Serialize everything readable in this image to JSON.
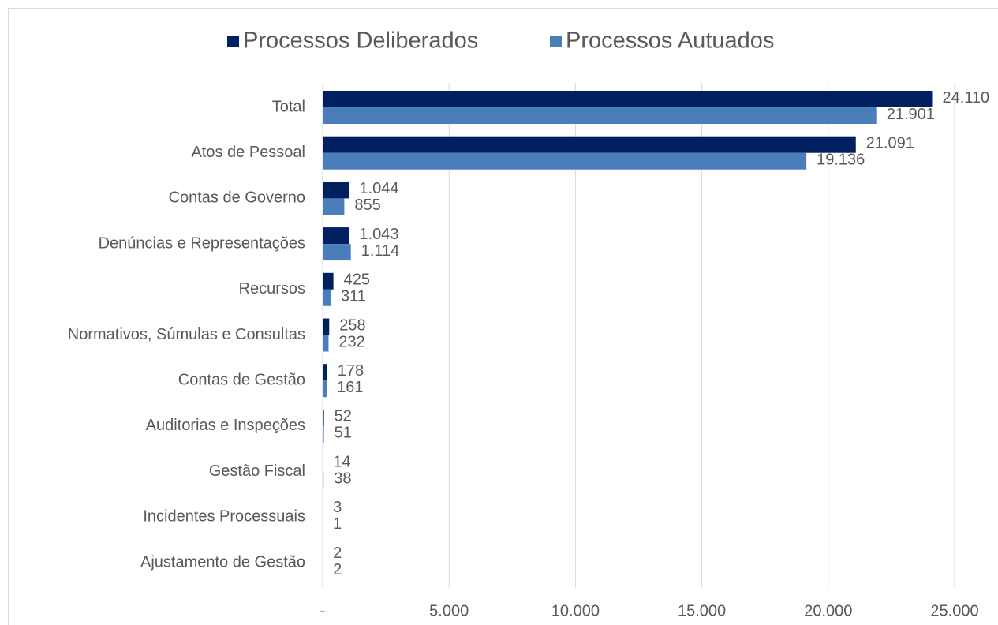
{
  "chart_data": {
    "type": "hbar",
    "categories": [
      "Total",
      "Atos de Pessoal",
      "Contas de Governo",
      "Denúncias e Representações",
      "Recursos",
      "Normativos, Súmulas e Consultas",
      "Contas de Gestão",
      "Auditorias e Inspeções",
      "Gestão Fiscal",
      "Incidentes Processuais",
      "Ajustamento de Gestão"
    ],
    "series": [
      {
        "name": "Processos Deliberados",
        "color": "#002060",
        "values": [
          24110,
          21091,
          1044,
          1043,
          425,
          258,
          178,
          52,
          14,
          3,
          2
        ],
        "value_labels": [
          "24.110",
          "21.091",
          "1.044",
          "1.043",
          "425",
          "258",
          "178",
          "52",
          "14",
          "3",
          "2"
        ]
      },
      {
        "name": "Processos Autuados",
        "color": "#4a7ebb",
        "values": [
          21901,
          19136,
          855,
          1114,
          311,
          232,
          161,
          51,
          38,
          1,
          2
        ],
        "value_labels": [
          "21.901",
          "19.136",
          "855",
          "1.114",
          "311",
          "232",
          "161",
          "51",
          "38",
          "1",
          "2"
        ]
      }
    ],
    "xlim": [
      0,
      25000
    ],
    "xticks": [
      {
        "value": 0,
        "label": "-"
      },
      {
        "value": 5000,
        "label": "5.000"
      },
      {
        "value": 10000,
        "label": "10.000"
      },
      {
        "value": 15000,
        "label": "15.000"
      },
      {
        "value": 20000,
        "label": "20.000"
      },
      {
        "value": 25000,
        "label": "25.000"
      }
    ],
    "grid": true,
    "legend": "top"
  }
}
